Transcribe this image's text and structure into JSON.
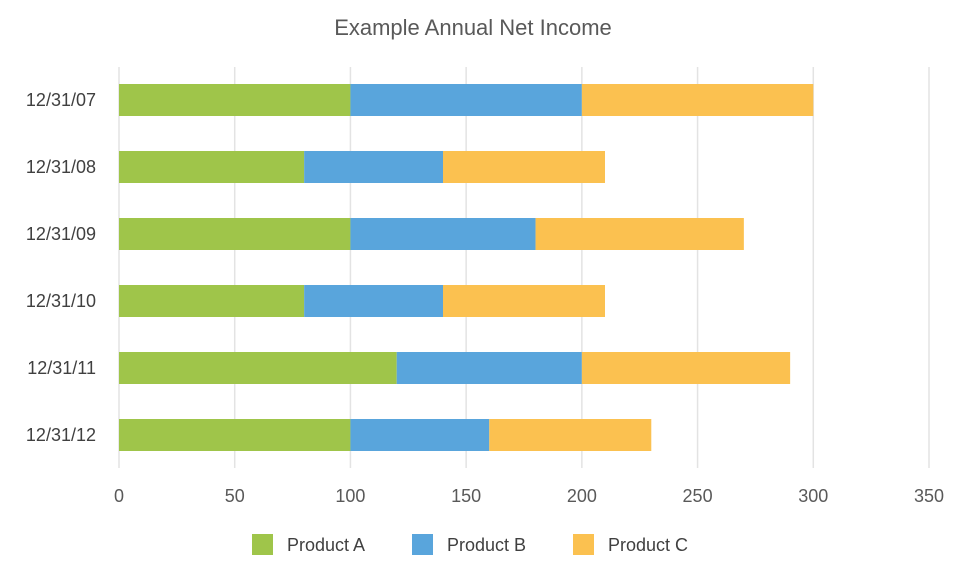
{
  "chart_data": {
    "type": "bar",
    "orientation": "horizontal",
    "stacked": true,
    "title": "Example Annual Net Income",
    "xlabel": "",
    "ylabel": "",
    "categories": [
      "12/31/07",
      "12/31/08",
      "12/31/09",
      "12/31/10",
      "12/31/11",
      "12/31/12"
    ],
    "series": [
      {
        "name": "Product A",
        "color": "#9fc54a",
        "values": [
          100,
          80,
          100,
          80,
          120,
          100
        ]
      },
      {
        "name": "Product B",
        "color": "#59a5dc",
        "values": [
          100,
          60,
          80,
          60,
          80,
          60
        ]
      },
      {
        "name": "Product C",
        "color": "#fbc150",
        "values": [
          100,
          70,
          90,
          70,
          90,
          70
        ]
      }
    ],
    "xlim": [
      0,
      350
    ],
    "xticks": [
      0,
      50,
      100,
      150,
      200,
      250,
      300,
      350
    ],
    "grid": true,
    "legend_position": "bottom"
  }
}
